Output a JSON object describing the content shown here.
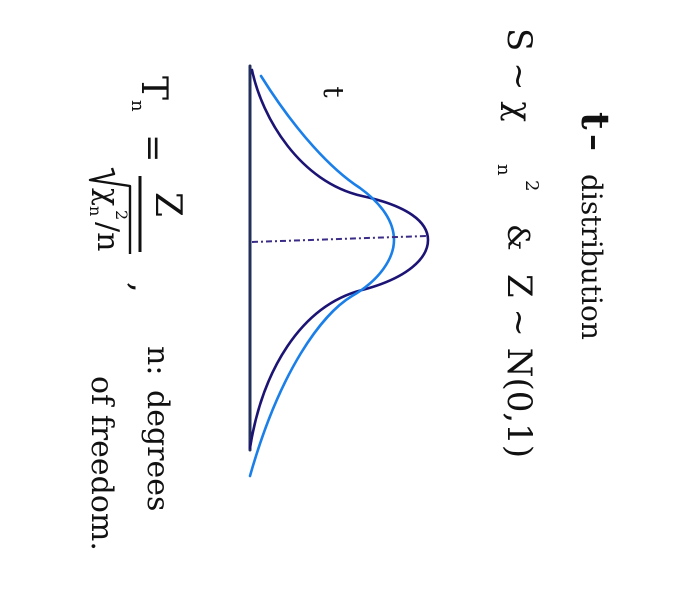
{
  "title": {
    "symbol": "t",
    "dash": "–",
    "text": "distribution"
  },
  "definition": {
    "s_part": "S ~ χ",
    "s_sub": "n",
    "s_sup": "2",
    "and": "&",
    "z_part": "Z ~ N(0,1)"
  },
  "curve_label": "t",
  "formula": {
    "lhs": "T",
    "lhs_sub": "n",
    "equals": "=",
    "numerator": "Z",
    "denominator_chi": "χ",
    "denominator_sub": "n",
    "denominator_sup": "2",
    "denominator_rest": "/n",
    "comma": ","
  },
  "note": {
    "n_label": "n:",
    "degrees": "degrees",
    "of_freedom": "of freedom."
  },
  "colors": {
    "ink": "#111111",
    "normal_curve": "#1c1475",
    "t_curve": "#1a7fe8",
    "axis": "#23305c",
    "mean_line": "#3a2c86"
  }
}
